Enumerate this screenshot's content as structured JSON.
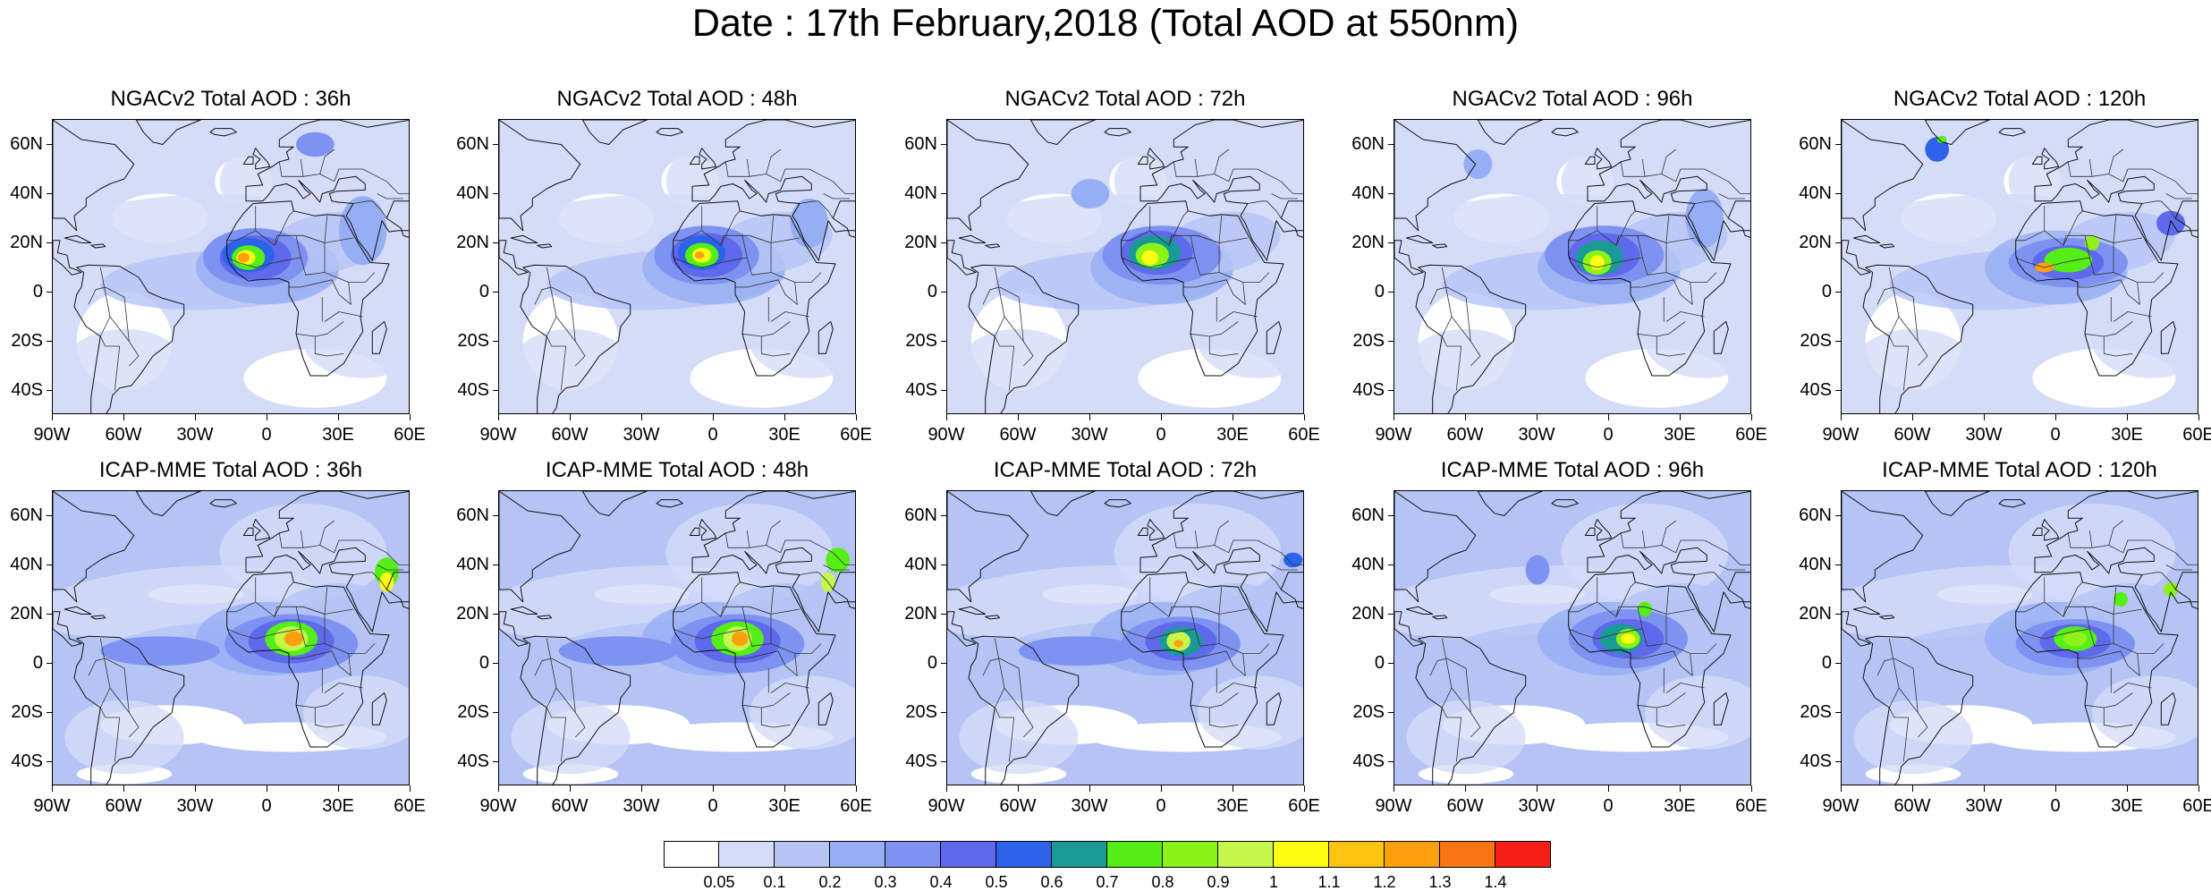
{
  "title": "Date : 17th February,2018 (Total AOD at 550nm)",
  "panels": [
    {
      "title": "NGACv2 Total AOD : 36h"
    },
    {
      "title": "NGACv2 Total AOD : 48h"
    },
    {
      "title": "NGACv2 Total AOD : 72h"
    },
    {
      "title": "NGACv2 Total AOD : 96h"
    },
    {
      "title": "NGACv2 Total AOD : 120h"
    },
    {
      "title": "ICAP-MME Total AOD : 36h"
    },
    {
      "title": "ICAP-MME Total AOD : 48h"
    },
    {
      "title": "ICAP-MME Total AOD : 72h"
    },
    {
      "title": "ICAP-MME Total AOD : 96h"
    },
    {
      "title": "ICAP-MME Total AOD : 120h"
    }
  ],
  "map_extent": {
    "lon": [
      -90,
      60
    ],
    "lat": [
      -50,
      70
    ]
  },
  "lat_ticks": [
    {
      "value": 60,
      "label": "60N"
    },
    {
      "value": 40,
      "label": "40N"
    },
    {
      "value": 20,
      "label": "20N"
    },
    {
      "value": 0,
      "label": "0"
    },
    {
      "value": -20,
      "label": "20S"
    },
    {
      "value": -40,
      "label": "40S"
    }
  ],
  "lon_ticks": [
    {
      "value": -90,
      "label": "90W"
    },
    {
      "value": -60,
      "label": "60W"
    },
    {
      "value": -30,
      "label": "30W"
    },
    {
      "value": 0,
      "label": "0"
    },
    {
      "value": 30,
      "label": "30E"
    },
    {
      "value": 60,
      "label": "60E"
    }
  ],
  "colorbar": {
    "colors": [
      "#ffffff",
      "#d4dcf8",
      "#b5c4f5",
      "#96aef4",
      "#7e93f1",
      "#5f69eb",
      "#2c63ea",
      "#1a9a96",
      "#55ee16",
      "#8cf218",
      "#c6f64a",
      "#fdfd14",
      "#fdc412",
      "#fda010",
      "#f97412",
      "#f51f16"
    ],
    "labels": [
      "0.05",
      "0.1",
      "0.2",
      "0.3",
      "0.4",
      "0.5",
      "0.6",
      "0.7",
      "0.8",
      "0.9",
      "1",
      "1.1",
      "1.2",
      "1.3",
      "1.4"
    ]
  }
}
